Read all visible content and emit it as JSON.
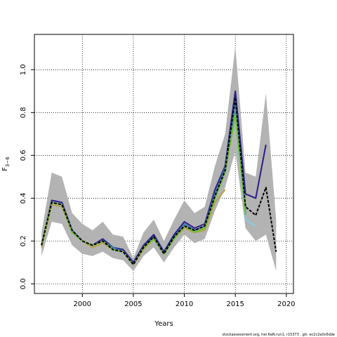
{
  "chart_data": {
    "type": "line",
    "xlabel": "Years",
    "ylabel": "F",
    "ylabel_subscript": "3−6",
    "xlim": [
      1995.3,
      2020.7
    ],
    "ylim": [
      -0.045,
      1.165
    ],
    "x_ticks": [
      2000,
      2005,
      2010,
      2015,
      2020
    ],
    "x_tick_labels": [
      "2000",
      "2005",
      "2010",
      "2015",
      "2020"
    ],
    "y_ticks": [
      0.0,
      0.2,
      0.4,
      0.6,
      0.8,
      1.0
    ],
    "y_tick_labels": [
      "0.0",
      "0.2",
      "0.4",
      "0.6",
      "0.8",
      "1.0"
    ],
    "grid": true,
    "confidence_band": {
      "color": "#b3b3b3",
      "x": [
        1996,
        1997,
        1998,
        1999,
        2000,
        2001,
        2002,
        2003,
        2004,
        2005,
        2006,
        2007,
        2008,
        2009,
        2010,
        2011,
        2012,
        2013,
        2014,
        2015,
        2016,
        2017,
        2018,
        2019
      ],
      "upper": [
        0.24,
        0.52,
        0.5,
        0.33,
        0.28,
        0.25,
        0.29,
        0.23,
        0.22,
        0.12,
        0.24,
        0.3,
        0.2,
        0.3,
        0.39,
        0.33,
        0.36,
        0.55,
        0.7,
        1.11,
        0.52,
        0.5,
        0.89,
        0.3
      ],
      "lower": [
        0.13,
        0.29,
        0.28,
        0.18,
        0.14,
        0.13,
        0.15,
        0.12,
        0.11,
        0.06,
        0.13,
        0.17,
        0.1,
        0.17,
        0.23,
        0.19,
        0.21,
        0.34,
        0.45,
        0.62,
        0.26,
        0.2,
        0.23,
        0.06
      ]
    },
    "series": [
      {
        "color": "#2a1e8a",
        "x": [
          1996,
          1997,
          1998,
          1999,
          2000,
          2001,
          2002,
          2003,
          2004,
          2005,
          2006,
          2007,
          2008,
          2009,
          2010,
          2011,
          2012,
          2013,
          2014,
          2015,
          2016,
          2017,
          2018
        ],
        "values": [
          0.18,
          0.39,
          0.38,
          0.25,
          0.2,
          0.18,
          0.21,
          0.17,
          0.16,
          0.1,
          0.18,
          0.23,
          0.15,
          0.23,
          0.29,
          0.26,
          0.28,
          0.44,
          0.55,
          0.9,
          0.42,
          0.4,
          0.65
        ],
        "dash": ""
      },
      {
        "color": "#3b7bb0",
        "x": [
          1996,
          1997,
          1998,
          1999,
          2000,
          2001,
          2002,
          2003,
          2004,
          2005,
          2006,
          2007,
          2008,
          2009,
          2010,
          2011,
          2012,
          2013,
          2014,
          2015,
          2016
        ],
        "values": [
          0.18,
          0.38,
          0.37,
          0.25,
          0.2,
          0.18,
          0.2,
          0.17,
          0.15,
          0.09,
          0.17,
          0.22,
          0.14,
          0.22,
          0.28,
          0.25,
          0.27,
          0.42,
          0.54,
          0.85,
          0.34
        ],
        "dash": ""
      },
      {
        "color": "#2fa88a",
        "x": [
          1996,
          1997,
          1998,
          1999,
          2000,
          2001,
          2002,
          2003,
          2004,
          2005,
          2006,
          2007,
          2008,
          2009,
          2010,
          2011,
          2012,
          2013,
          2014,
          2015,
          2016
        ],
        "values": [
          0.18,
          0.38,
          0.37,
          0.24,
          0.2,
          0.18,
          0.2,
          0.16,
          0.15,
          0.09,
          0.17,
          0.21,
          0.14,
          0.21,
          0.27,
          0.24,
          0.26,
          0.4,
          0.52,
          0.8,
          0.33
        ],
        "dash": ""
      },
      {
        "color": "#7fd0ea",
        "x": [
          2015,
          2016,
          2017
        ],
        "values": [
          0.78,
          0.3,
          0.27
        ],
        "dash": ""
      },
      {
        "color": "#b5a34a",
        "x": [
          1996,
          1997,
          1998,
          1999,
          2000,
          2001,
          2002,
          2003,
          2004,
          2005,
          2006,
          2007,
          2008,
          2009,
          2010,
          2011,
          2012,
          2013,
          2014
        ],
        "values": [
          0.17,
          0.37,
          0.36,
          0.24,
          0.2,
          0.17,
          0.19,
          0.16,
          0.15,
          0.09,
          0.16,
          0.21,
          0.14,
          0.21,
          0.26,
          0.24,
          0.25,
          0.38,
          0.44
        ],
        "dash": ""
      },
      {
        "color": "#6fbf2a",
        "x": [
          1996,
          1997,
          1998,
          1999,
          2000,
          2001,
          2002,
          2003,
          2004,
          2005,
          2006,
          2007,
          2008,
          2009,
          2010,
          2011,
          2012,
          2013,
          2014,
          2015,
          2016
        ],
        "values": [
          0.18,
          0.38,
          0.37,
          0.24,
          0.2,
          0.18,
          0.2,
          0.16,
          0.15,
          0.09,
          0.17,
          0.21,
          0.14,
          0.21,
          0.27,
          0.24,
          0.26,
          0.4,
          0.52,
          0.79,
          0.32
        ],
        "dash": ""
      },
      {
        "color": "#000000",
        "x": [
          1996,
          1997,
          1998,
          1999,
          2000,
          2001,
          2002,
          2003,
          2004,
          2005,
          2006,
          2007,
          2008,
          2009,
          2010,
          2011,
          2012,
          2013,
          2014,
          2015,
          2016,
          2017,
          2018,
          2019
        ],
        "values": [
          0.18,
          0.38,
          0.37,
          0.25,
          0.2,
          0.18,
          0.2,
          0.16,
          0.15,
          0.09,
          0.17,
          0.22,
          0.14,
          0.22,
          0.27,
          0.25,
          0.27,
          0.41,
          0.53,
          0.87,
          0.36,
          0.32,
          0.45,
          0.15
        ],
        "dash": "4,2"
      }
    ]
  },
  "footer_text": "stockassessment.org,  her.6aN.run1,  r15373 ,  git:  ec2c2a0c6dde"
}
